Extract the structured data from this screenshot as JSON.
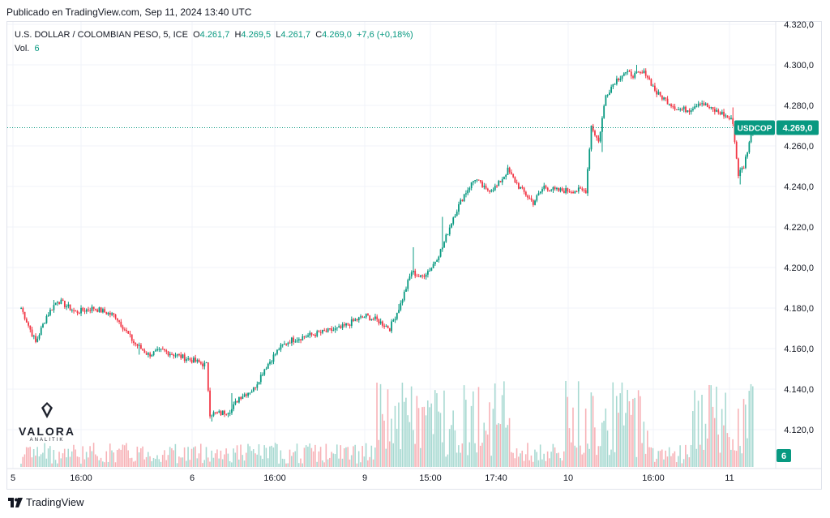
{
  "header": {
    "published": "Publicado en TradingView.com, Sep 11, 2024 13:40 UTC"
  },
  "legend": {
    "symbol": "U.S. DOLLAR / COLOMBIAN PESO, 5, ICE",
    "o_label": "O",
    "o_value": "4.261,7",
    "h_label": "H",
    "h_value": "4.269,5",
    "l_label": "L",
    "l_value": "4.261,7",
    "c_label": "C",
    "c_value": "4.269,0",
    "change": "+7,6 (+0,18%)",
    "vol_label": "Vol.",
    "vol_value": "6"
  },
  "footer": {
    "brand": "TradingView"
  },
  "watermark": {
    "name": "VALORA",
    "sub": "ANALITIK"
  },
  "colors": {
    "up": "#089981",
    "down": "#f23645",
    "up_vol": "#a7d9d1",
    "down_vol": "#f7b1b6",
    "grid": "#f0f3fa"
  },
  "chart_data": {
    "type": "candlestick",
    "y_ticks": [
      "4.120,0",
      "4.140,0",
      "4.160,0",
      "4.180,0",
      "4.200,0",
      "4.220,0",
      "4.240,0",
      "4.260,0",
      "4.280,0",
      "4.300,0",
      "4.320,0"
    ],
    "y_tick_values": [
      4120,
      4140,
      4160,
      4180,
      4200,
      4220,
      4240,
      4260,
      4280,
      4300,
      4320
    ],
    "ylim": [
      4112,
      4322
    ],
    "x_ticks": [
      "5",
      "16:00",
      "6",
      "16:00",
      "9",
      "15:00",
      "17:40",
      "10",
      "16:00",
      "11"
    ],
    "price_tag": {
      "symbol": "USDCOP",
      "value": "4.269,0",
      "price": 4269
    },
    "volume_tag": "6",
    "anchors": [
      [
        0,
        4180
      ],
      [
        8,
        4163
      ],
      [
        14,
        4176
      ],
      [
        20,
        4184
      ],
      [
        30,
        4178
      ],
      [
        40,
        4180
      ],
      [
        52,
        4176
      ],
      [
        62,
        4163
      ],
      [
        70,
        4157
      ],
      [
        78,
        4159
      ],
      [
        88,
        4156
      ],
      [
        95,
        4154
      ],
      [
        101,
        4152
      ],
      [
        102,
        4152
      ],
      [
        104,
        4128
      ],
      [
        110,
        4128
      ],
      [
        116,
        4130
      ],
      [
        120,
        4136
      ],
      [
        128,
        4140
      ],
      [
        134,
        4150
      ],
      [
        142,
        4160
      ],
      [
        148,
        4164
      ],
      [
        156,
        4166
      ],
      [
        166,
        4168
      ],
      [
        176,
        4170
      ],
      [
        184,
        4174
      ],
      [
        190,
        4176
      ],
      [
        196,
        4174
      ],
      [
        203,
        4170
      ],
      [
        204,
        4172
      ],
      [
        209,
        4182
      ],
      [
        215,
        4198
      ],
      [
        220,
        4195
      ],
      [
        226,
        4200
      ],
      [
        232,
        4210
      ],
      [
        238,
        4225
      ],
      [
        244,
        4236
      ],
      [
        250,
        4244
      ],
      [
        256,
        4238
      ],
      [
        262,
        4240
      ],
      [
        268,
        4248
      ],
      [
        274,
        4240
      ],
      [
        278,
        4236
      ],
      [
        282,
        4232
      ],
      [
        288,
        4240
      ],
      [
        294,
        4238
      ],
      [
        300,
        4238
      ],
      [
        306,
        4238
      ],
      [
        310,
        4238
      ],
      [
        311,
        4238
      ],
      [
        314,
        4270
      ],
      [
        318,
        4262
      ],
      [
        322,
        4285
      ],
      [
        327,
        4292
      ],
      [
        332,
        4296
      ],
      [
        338,
        4295
      ],
      [
        344,
        4296
      ],
      [
        350,
        4286
      ],
      [
        356,
        4282
      ],
      [
        362,
        4278
      ],
      [
        368,
        4278
      ],
      [
        374,
        4282
      ],
      [
        380,
        4278
      ],
      [
        386,
        4276
      ],
      [
        392,
        4272
      ],
      [
        393,
        4262
      ],
      [
        395,
        4246
      ],
      [
        398,
        4250
      ],
      [
        401,
        4262
      ],
      [
        403,
        4268
      ]
    ],
    "spikes": [
      [
        18,
        4184
      ],
      [
        65,
        4157
      ],
      [
        105,
        4124
      ],
      [
        116,
        4138
      ],
      [
        208,
        4182
      ],
      [
        216,
        4210
      ],
      [
        232,
        4225
      ],
      [
        320,
        4257
      ],
      [
        339,
        4300
      ],
      [
        392,
        4279
      ],
      [
        396,
        4241
      ]
    ]
  }
}
